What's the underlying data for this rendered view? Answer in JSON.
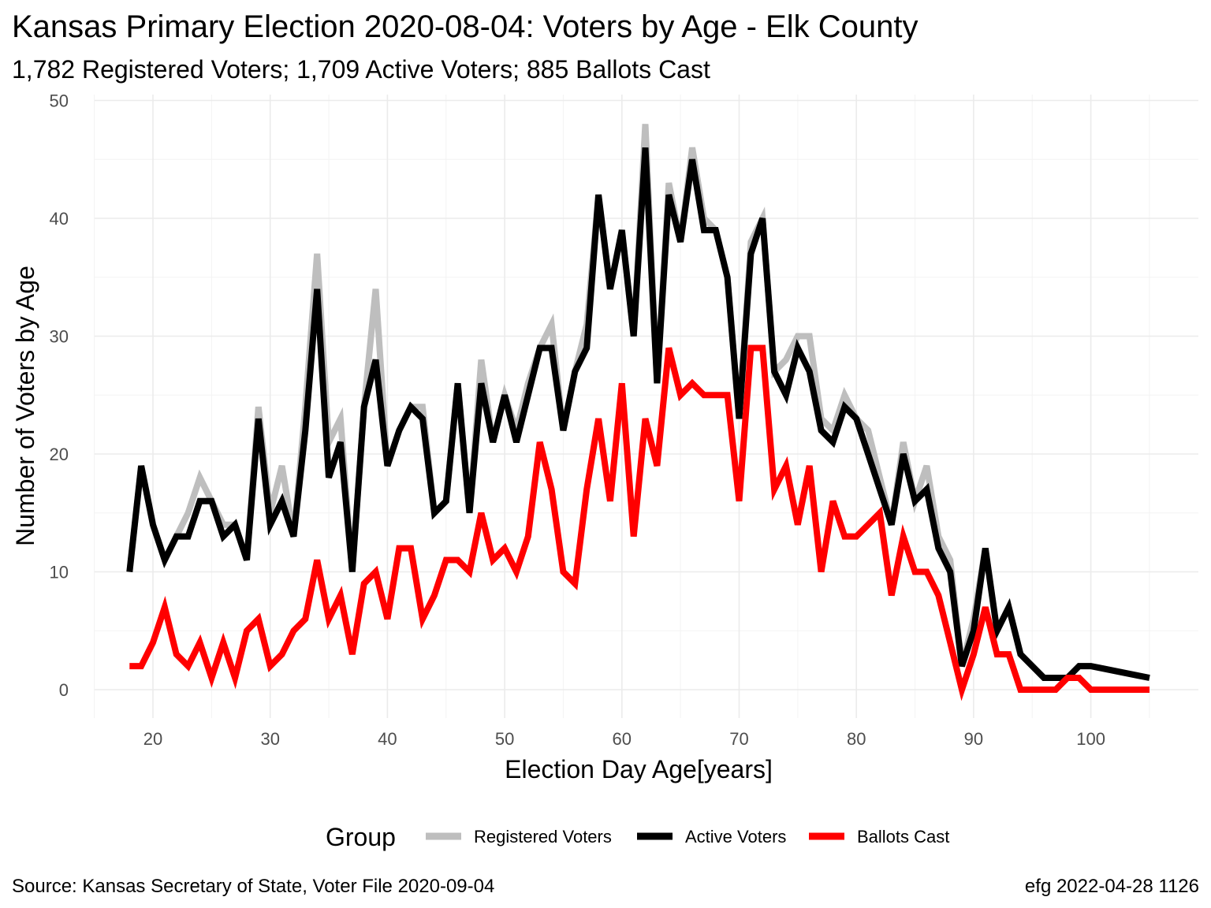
{
  "chart_data": {
    "type": "line",
    "title": "Kansas Primary Election 2020-08-04:  Voters by Age - Elk County",
    "subtitle": "1,782 Registered Voters; 1,709 Active Voters; 885 Ballots Cast",
    "xlabel": "Election Day Age[years]",
    "ylabel": "Number of Voters by Age",
    "xlim": [
      18,
      105
    ],
    "ylim": [
      0,
      50
    ],
    "x_ticks": [
      20,
      30,
      40,
      50,
      60,
      70,
      80,
      90,
      100
    ],
    "y_ticks": [
      0,
      10,
      20,
      30,
      40,
      50
    ],
    "grid": true,
    "legend_title": "Group",
    "legend_position": "bottom",
    "caption_left": "Source:  Kansas Secretary of State, Voter File  2020-09-04",
    "caption_right": "efg 2022-04-28 1126",
    "x": [
      18,
      19,
      20,
      21,
      22,
      23,
      24,
      25,
      26,
      27,
      28,
      29,
      30,
      31,
      32,
      33,
      34,
      35,
      36,
      37,
      38,
      39,
      40,
      41,
      42,
      43,
      44,
      45,
      46,
      47,
      48,
      49,
      50,
      51,
      52,
      53,
      54,
      55,
      56,
      57,
      58,
      59,
      60,
      61,
      62,
      63,
      64,
      65,
      66,
      67,
      68,
      69,
      70,
      71,
      72,
      73,
      74,
      75,
      76,
      77,
      78,
      79,
      80,
      81,
      82,
      83,
      84,
      85,
      86,
      87,
      88,
      89,
      90,
      91,
      92,
      93,
      94,
      95,
      96,
      97,
      98,
      99,
      100,
      101,
      102,
      103,
      104,
      105
    ],
    "series": [
      {
        "name": "Registered Voters",
        "color": "#bebebe",
        "values": [
          10,
          19,
          14,
          11,
          13,
          15,
          18,
          16,
          14,
          14,
          11,
          24,
          15,
          19,
          13,
          24,
          37,
          21,
          23,
          10,
          24,
          34,
          19,
          22,
          24,
          24,
          15,
          16,
          26,
          15,
          28,
          21,
          25,
          22,
          26,
          29,
          31,
          22,
          27,
          31,
          42,
          34,
          39,
          30,
          48,
          26,
          43,
          38,
          46,
          40,
          39,
          35,
          23,
          38,
          40,
          27,
          28,
          30,
          30,
          23,
          22,
          25,
          23,
          22,
          18,
          14,
          21,
          16,
          19,
          13,
          11,
          2,
          6,
          12,
          5,
          7,
          3,
          2,
          1,
          1,
          1,
          2,
          2,
          1.8,
          1.6,
          1.4,
          1.2,
          1
        ]
      },
      {
        "name": "Active Voters",
        "color": "#000000",
        "values": [
          10,
          19,
          14,
          11,
          13,
          13,
          16,
          16,
          13,
          14,
          11,
          23,
          14,
          16,
          13,
          22,
          34,
          18,
          21,
          10,
          24,
          28,
          19,
          22,
          24,
          23,
          15,
          16,
          26,
          15,
          26,
          21,
          25,
          21,
          25,
          29,
          29,
          22,
          27,
          29,
          42,
          34,
          39,
          30,
          46,
          26,
          42,
          38,
          45,
          39,
          39,
          35,
          23,
          37,
          40,
          27,
          25,
          29,
          27,
          22,
          21,
          24,
          23,
          20,
          17,
          14,
          20,
          16,
          17,
          12,
          10,
          2,
          5,
          12,
          5,
          7,
          3,
          2,
          1,
          1,
          1,
          2,
          2,
          1.8,
          1.6,
          1.4,
          1.2,
          1
        ]
      },
      {
        "name": "Ballots Cast",
        "color": "#ff0000",
        "values": [
          2,
          2,
          4,
          7,
          3,
          2,
          4,
          1,
          4,
          1,
          5,
          6,
          2,
          3,
          5,
          6,
          11,
          6,
          8,
          3,
          9,
          10,
          6,
          12,
          12,
          6,
          8,
          11,
          11,
          10,
          15,
          11,
          12,
          10,
          13,
          21,
          17,
          10,
          9,
          17,
          23,
          16,
          26,
          13,
          23,
          19,
          29,
          25,
          26,
          25,
          25,
          25,
          16,
          29,
          29,
          17,
          19,
          14,
          19,
          10,
          16,
          13,
          13,
          14,
          15,
          8,
          13,
          10,
          10,
          8,
          4,
          0,
          3,
          7,
          3,
          3,
          0,
          0,
          0,
          0,
          1,
          1,
          0,
          0,
          0,
          0,
          0,
          0
        ]
      }
    ]
  }
}
